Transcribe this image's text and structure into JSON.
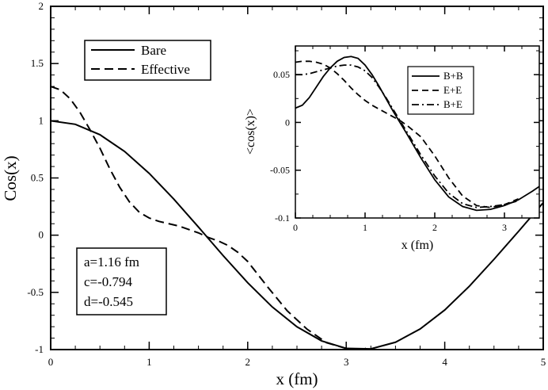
{
  "chart_data": [
    {
      "type": "line",
      "xlabel": "x (fm)",
      "ylabel": "Cos(x)",
      "xlim": [
        0,
        5
      ],
      "ylim": [
        -1,
        2
      ],
      "xticks": [
        "0",
        "1",
        "2",
        "3",
        "4",
        "5"
      ],
      "yticks": [
        "-1",
        "-0.5",
        "0",
        "0.5",
        "1",
        "1.5",
        "2"
      ],
      "legend_position": "top-left",
      "series": [
        {
          "name": "Bare",
          "style": "solid",
          "x": [
            0,
            0.25,
            0.5,
            0.75,
            1.0,
            1.25,
            1.5,
            1.75,
            2.0,
            2.25,
            2.5,
            2.75,
            3.0,
            3.25,
            3.5,
            3.75,
            4.0,
            4.25,
            4.5,
            4.75,
            5.0
          ],
          "values": [
            1.0,
            0.969,
            0.878,
            0.732,
            0.54,
            0.315,
            0.071,
            -0.178,
            -0.416,
            -0.628,
            -0.801,
            -0.924,
            -0.99,
            -0.994,
            -0.936,
            -0.82,
            -0.654,
            -0.446,
            -0.211,
            0.034,
            0.284
          ]
        },
        {
          "name": "Effective",
          "style": "dashed",
          "x": [
            0,
            0.1,
            0.2,
            0.3,
            0.4,
            0.5,
            0.6,
            0.7,
            0.8,
            0.9,
            1.0,
            1.1,
            1.2,
            1.3,
            1.4,
            1.5,
            1.6,
            1.7,
            1.8,
            1.9,
            2.0,
            2.2,
            2.4,
            2.6,
            2.8,
            3.0,
            3.1,
            3.2
          ],
          "values": [
            1.3,
            1.27,
            1.19,
            1.07,
            0.92,
            0.76,
            0.58,
            0.42,
            0.29,
            0.2,
            0.15,
            0.12,
            0.1,
            0.08,
            0.05,
            0.02,
            -0.02,
            -0.05,
            -0.09,
            -0.15,
            -0.23,
            -0.45,
            -0.66,
            -0.82,
            -0.94,
            -0.99,
            -1.0,
            -0.99
          ]
        }
      ],
      "annotations": {
        "a": "a=1.16 fm",
        "c": "c=-0.794",
        "d": "d=-0.545"
      }
    },
    {
      "type": "line",
      "role": "inset",
      "xlabel": "x (fm)",
      "ylabel": "<cos(x)>",
      "xlim": [
        0,
        3.5
      ],
      "ylim": [
        -0.1,
        0.08
      ],
      "xticks": [
        "0",
        "1",
        "2",
        "3"
      ],
      "yticks": [
        "-0.1",
        "-0.05",
        "0",
        "0.05"
      ],
      "legend_position": "top-right",
      "series": [
        {
          "name": "B+B",
          "style": "solid",
          "x": [
            0,
            0.1,
            0.2,
            0.3,
            0.4,
            0.5,
            0.6,
            0.7,
            0.8,
            0.9,
            1.0,
            1.1,
            1.2,
            1.3,
            1.4,
            1.5,
            1.6,
            1.8,
            2.0,
            2.2,
            2.4,
            2.6,
            2.8,
            3.0,
            3.2,
            3.4,
            3.5
          ],
          "values": [
            0.015,
            0.018,
            0.026,
            0.037,
            0.048,
            0.057,
            0.064,
            0.068,
            0.069,
            0.067,
            0.06,
            0.05,
            0.038,
            0.025,
            0.012,
            0.0,
            -0.012,
            -0.037,
            -0.06,
            -0.078,
            -0.088,
            -0.092,
            -0.091,
            -0.087,
            -0.081,
            -0.072,
            -0.067
          ]
        },
        {
          "name": "E+E",
          "style": "dashed",
          "x": [
            0,
            0.1,
            0.2,
            0.3,
            0.4,
            0.5,
            0.6,
            0.7,
            0.8,
            0.9,
            1.0,
            1.1,
            1.2,
            1.3,
            1.4,
            1.5,
            1.6,
            1.8,
            2.0,
            2.2,
            2.4,
            2.6,
            2.8,
            3.0,
            3.2
          ],
          "values": [
            0.063,
            0.064,
            0.064,
            0.063,
            0.061,
            0.057,
            0.051,
            0.044,
            0.036,
            0.029,
            0.023,
            0.018,
            0.014,
            0.01,
            0.006,
            0.002,
            -0.003,
            -0.015,
            -0.035,
            -0.058,
            -0.077,
            -0.087,
            -0.089,
            -0.086,
            -0.08
          ]
        },
        {
          "name": "B+E",
          "style": "dashdot",
          "x": [
            0,
            0.1,
            0.2,
            0.3,
            0.4,
            0.5,
            0.6,
            0.7,
            0.8,
            0.9,
            1.0,
            1.1,
            1.2,
            1.3,
            1.4,
            1.5,
            1.6,
            1.8,
            2.0,
            2.2,
            2.4,
            2.6,
            2.8,
            3.0,
            3.2
          ],
          "values": [
            0.05,
            0.05,
            0.051,
            0.053,
            0.055,
            0.057,
            0.059,
            0.06,
            0.06,
            0.058,
            0.054,
            0.047,
            0.037,
            0.026,
            0.014,
            0.002,
            -0.01,
            -0.034,
            -0.056,
            -0.074,
            -0.085,
            -0.089,
            -0.088,
            -0.086,
            -0.082
          ]
        }
      ]
    }
  ]
}
